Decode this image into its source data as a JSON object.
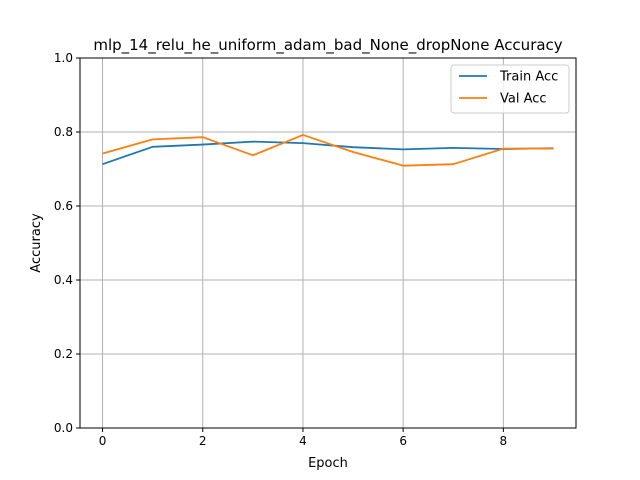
{
  "chart_data": {
    "type": "line",
    "title": "mlp_14_relu_he_uniform_adam_bad_None_dropNone Accuracy",
    "xlabel": "Epoch",
    "ylabel": "Accuracy",
    "x": [
      0,
      1,
      2,
      3,
      4,
      5,
      6,
      7,
      8,
      9
    ],
    "xlim": [
      -0.45,
      9.45
    ],
    "ylim": [
      0,
      1
    ],
    "xticks": [
      "0",
      "2",
      "4",
      "6",
      "8"
    ],
    "yticks": [
      "0.0",
      "0.2",
      "0.4",
      "0.6",
      "0.8",
      "1.0"
    ],
    "grid": true,
    "legend_position": "top-right",
    "series": [
      {
        "name": "Train Acc",
        "color": "#1f77b4",
        "values": [
          0.713,
          0.76,
          0.766,
          0.774,
          0.77,
          0.759,
          0.753,
          0.757,
          0.754,
          0.756
        ]
      },
      {
        "name": "Val Acc",
        "color": "#ff7f0e",
        "values": [
          0.742,
          0.78,
          0.786,
          0.737,
          0.792,
          0.746,
          0.709,
          0.713,
          0.755,
          0.755
        ]
      }
    ]
  }
}
